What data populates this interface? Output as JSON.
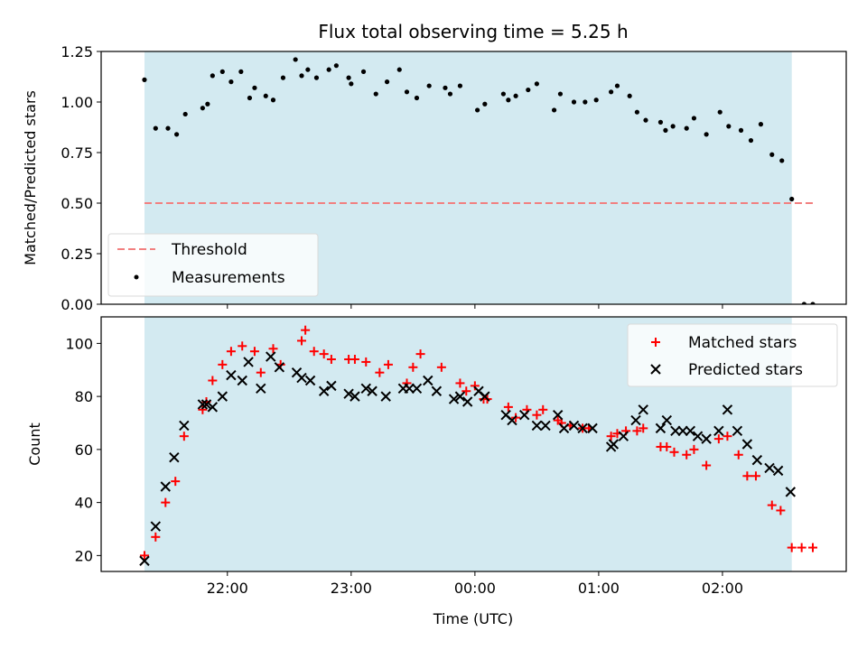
{
  "chart_data": {
    "title": "Flux total observing time = 5.25 h",
    "xlabel": "Time (UTC)",
    "x_ticks": [
      "22:00",
      "23:00",
      "00:00",
      "01:00",
      "02:00"
    ],
    "x_range_hours": [
      20.98,
      27.0
    ],
    "observing_span_hours": [
      21.33,
      26.56
    ],
    "colors": {
      "span": "#d3eaf1",
      "threshold": "#f28080",
      "measurements": "#000000",
      "matched": "#ff0000",
      "predicted": "#000000"
    },
    "panels": [
      {
        "type": "scatter",
        "ylabel": "Matched/Predicted stars",
        "ylim": [
          0,
          1.25
        ],
        "y_ticks": [
          "0.00",
          "0.25",
          "0.50",
          "0.75",
          "1.00",
          "1.25"
        ],
        "legend": {
          "position": "lower-left",
          "entries": [
            "Threshold",
            "Measurements"
          ]
        },
        "threshold": {
          "name": "Threshold",
          "value": 0.5,
          "x_range": [
            21.33,
            26.73
          ]
        },
        "series": [
          {
            "name": "Measurements",
            "x": [
              21.33,
              21.42,
              21.52,
              21.59,
              21.66,
              21.8,
              21.84,
              21.88,
              21.96,
              22.03,
              22.11,
              22.18,
              22.22,
              22.31,
              22.37,
              22.45,
              22.55,
              22.6,
              22.65,
              22.72,
              22.82,
              22.88,
              22.98,
              23.0,
              23.1,
              23.2,
              23.29,
              23.39,
              23.45,
              23.53,
              23.63,
              23.76,
              23.8,
              23.88,
              24.02,
              24.08,
              24.23,
              24.27,
              24.33,
              24.43,
              24.5,
              24.64,
              24.69,
              24.8,
              24.89,
              24.98,
              25.1,
              25.15,
              25.25,
              25.31,
              25.38,
              25.5,
              25.54,
              25.6,
              25.71,
              25.77,
              25.87,
              25.98,
              26.05,
              26.15,
              26.23,
              26.31,
              26.4,
              26.48,
              26.56,
              26.66,
              26.73
            ],
            "y": [
              1.11,
              0.87,
              0.87,
              0.84,
              0.94,
              0.97,
              0.99,
              1.13,
              1.15,
              1.1,
              1.15,
              1.02,
              1.07,
              1.03,
              1.01,
              1.12,
              1.21,
              1.13,
              1.16,
              1.12,
              1.16,
              1.18,
              1.12,
              1.09,
              1.15,
              1.04,
              1.1,
              1.16,
              1.05,
              1.02,
              1.08,
              1.07,
              1.04,
              1.08,
              0.96,
              0.99,
              1.04,
              1.01,
              1.03,
              1.06,
              1.09,
              0.96,
              1.04,
              1.0,
              1.0,
              1.01,
              1.05,
              1.08,
              1.03,
              0.95,
              0.91,
              0.9,
              0.86,
              0.88,
              0.87,
              0.92,
              0.84,
              0.95,
              0.88,
              0.86,
              0.81,
              0.89,
              0.74,
              0.71,
              0.52,
              0.0,
              0.0
            ]
          }
        ]
      },
      {
        "type": "scatter",
        "ylabel": "Count",
        "ylim": [
          14,
          110
        ],
        "y_ticks": [
          "20",
          "40",
          "60",
          "80",
          "100"
        ],
        "legend": {
          "position": "upper-right",
          "entries": [
            "Matched stars",
            "Predicted stars"
          ]
        },
        "series": [
          {
            "name": "Matched stars",
            "marker": "plus",
            "x": [
              21.33,
              21.42,
              21.5,
              21.58,
              21.65,
              21.8,
              21.83,
              21.88,
              21.96,
              22.03,
              22.12,
              22.22,
              22.27,
              22.37,
              22.43,
              22.6,
              22.63,
              22.7,
              22.78,
              22.84,
              22.98,
              23.03,
              23.12,
              23.23,
              23.3,
              23.45,
              23.5,
              23.56,
              23.73,
              23.88,
              23.93,
              24.0,
              24.07,
              24.1,
              24.27,
              24.33,
              24.42,
              24.5,
              24.55,
              24.67,
              24.7,
              24.77,
              24.87,
              24.92,
              25.1,
              25.15,
              25.22,
              25.31,
              25.36,
              25.5,
              25.55,
              25.61,
              25.71,
              25.77,
              25.87,
              25.97,
              26.04,
              26.13,
              26.2,
              26.27,
              26.4,
              26.47,
              26.56,
              26.64,
              26.73
            ],
            "y": [
              20,
              27,
              40,
              48,
              65,
              75,
              78,
              86,
              92,
              97,
              99,
              97,
              89,
              98,
              92,
              101,
              105,
              97,
              96,
              94,
              94,
              94,
              93,
              89,
              92,
              85,
              91,
              96,
              91,
              85,
              82,
              84,
              79,
              79,
              76,
              72,
              75,
              73,
              75,
              71,
              70,
              69,
              68,
              68,
              65,
              66,
              67,
              67,
              68,
              61,
              61,
              59,
              58,
              60,
              54,
              64,
              65,
              58,
              50,
              50,
              39,
              37,
              23,
              23,
              23
            ]
          },
          {
            "name": "Predicted stars",
            "marker": "x",
            "x": [
              21.33,
              21.42,
              21.5,
              21.57,
              21.65,
              21.8,
              21.83,
              21.88,
              21.96,
              22.03,
              22.12,
              22.17,
              22.27,
              22.35,
              22.42,
              22.56,
              22.6,
              22.67,
              22.78,
              22.84,
              22.98,
              23.03,
              23.12,
              23.17,
              23.28,
              23.42,
              23.47,
              23.53,
              23.62,
              23.69,
              23.83,
              23.88,
              23.94,
              24.03,
              24.08,
              24.25,
              24.3,
              24.4,
              24.5,
              24.57,
              24.67,
              24.72,
              24.8,
              24.87,
              24.95,
              25.1,
              25.12,
              25.2,
              25.3,
              25.36,
              25.5,
              25.55,
              25.62,
              25.68,
              25.74,
              25.8,
              25.87,
              25.97,
              26.04,
              26.12,
              26.2,
              26.28,
              26.38,
              26.45,
              26.55
            ],
            "y": [
              18,
              31,
              46,
              57,
              69,
              77,
              77,
              76,
              80,
              88,
              86,
              93,
              83,
              95,
              91,
              89,
              87,
              86,
              82,
              84,
              81,
              80,
              83,
              82,
              80,
              83,
              83,
              83,
              86,
              82,
              79,
              80,
              78,
              82,
              80,
              73,
              71,
              73,
              69,
              69,
              73,
              68,
              69,
              68,
              68,
              61,
              62,
              65,
              71,
              75,
              68,
              71,
              67,
              67,
              67,
              65,
              64,
              67,
              75,
              67,
              62,
              56,
              53,
              52,
              44
            ]
          }
        ]
      }
    ]
  }
}
